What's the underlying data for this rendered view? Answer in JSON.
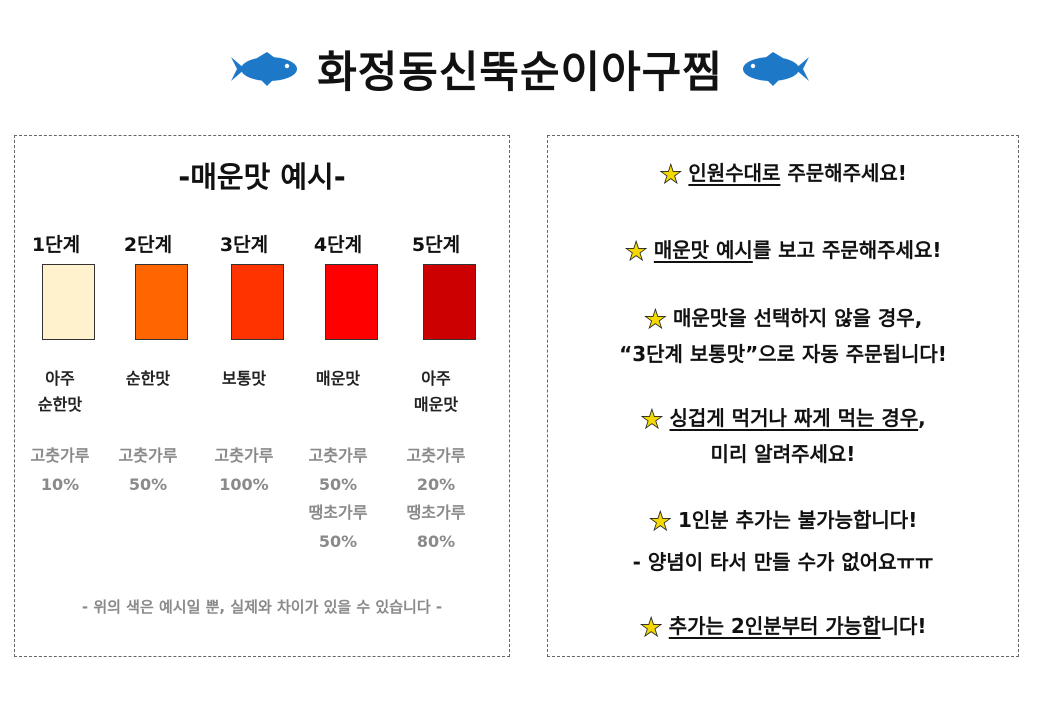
{
  "title": "화정동신뚝순이아구찜",
  "colors": {
    "fish": "#1e78c8",
    "star": "#f5d800"
  },
  "spice_section": {
    "heading": "-매운맛 예시-",
    "levels": [
      {
        "label": "1단계",
        "color": "#fff2cc",
        "taste": "아주\n순한맛",
        "powder": "고춧가루\n10%"
      },
      {
        "label": "2단계",
        "color": "#ff6600",
        "taste": "순한맛",
        "powder": "고춧가루\n50%"
      },
      {
        "label": "3단계",
        "color": "#ff3300",
        "taste": "보통맛",
        "powder": "고춧가루\n100%"
      },
      {
        "label": "4단계",
        "color": "#ff0000",
        "taste": "매운맛",
        "powder": "고춧가루\n50%\n땡초가루\n50%"
      },
      {
        "label": "5단계",
        "color": "#cc0000",
        "taste": "아주\n매운맛",
        "powder": "고춧가루\n20%\n땡초가루\n80%"
      }
    ],
    "note": "- 위의 색은 예시일 뿐, 실제와 차이가 있을 수 있습니다 -"
  },
  "rules": {
    "r1": {
      "u": "인원수대로",
      "rest": " 주문해주세요!"
    },
    "r2": {
      "u": "매운맛 예시",
      "rest": "를 보고 주문해주세요!"
    },
    "r3": {
      "line1": "매운맛을 선택하지 않을 경우,",
      "line2": "“3단계 보통맛”으로 자동 주문됩니다!"
    },
    "r4": {
      "u": "싱겁게 먹거나 짜게 먹는 경우",
      "rest": ",",
      "line2": "미리 알려주세요!"
    },
    "r5": {
      "line1": "1인분 추가는 불가능합니다!",
      "line2": "- 양념이 타서 만들 수가 없어요ㅠㅠ"
    },
    "r6": {
      "u": "추가는 2인분부터 가능합",
      "rest": "니다!"
    }
  }
}
